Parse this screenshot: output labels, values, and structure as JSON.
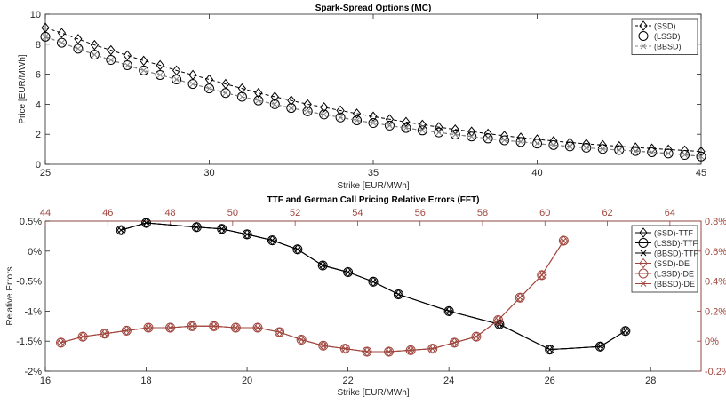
{
  "chart_data": [
    {
      "type": "line",
      "title": "Spark-Spread Options (MC)",
      "xlabel": "Strike [EUR/MWh]",
      "ylabel": "Price [EUR/MWh]",
      "xlim": [
        25,
        45
      ],
      "ylim": [
        0,
        10
      ],
      "xticks": [
        "25",
        "30",
        "35",
        "40",
        "45"
      ],
      "yticks": [
        "0",
        "2",
        "4",
        "6",
        "8",
        "10"
      ],
      "grid": false,
      "legend_position": "top-right",
      "x": [
        25,
        25.5,
        26,
        26.5,
        27,
        27.5,
        28,
        28.5,
        29,
        29.5,
        30,
        30.5,
        31,
        31.5,
        32,
        32.5,
        33,
        33.5,
        34,
        34.5,
        35,
        35.5,
        36,
        36.5,
        37,
        37.5,
        38,
        38.5,
        39,
        39.5,
        40,
        40.5,
        41,
        41.5,
        42,
        42.5,
        43,
        43.5,
        44,
        44.5,
        45
      ],
      "series": [
        {
          "name": "(SSD)",
          "marker": "diamond",
          "color": "#000000",
          "values": [
            9.1,
            8.75,
            8.35,
            7.95,
            7.6,
            7.25,
            6.9,
            6.6,
            6.25,
            5.95,
            5.65,
            5.35,
            5.05,
            4.75,
            4.5,
            4.25,
            4.0,
            3.8,
            3.58,
            3.38,
            3.18,
            3.0,
            2.82,
            2.64,
            2.48,
            2.32,
            2.18,
            2.04,
            1.9,
            1.78,
            1.66,
            1.55,
            1.45,
            1.36,
            1.28,
            1.2,
            1.12,
            1.05,
            0.98,
            0.92,
            0.85
          ]
        },
        {
          "name": "(LSSD)",
          "marker": "circle",
          "color": "#000000",
          "values": [
            8.5,
            8.1,
            7.7,
            7.3,
            6.95,
            6.6,
            6.25,
            5.95,
            5.65,
            5.35,
            5.05,
            4.75,
            4.5,
            4.25,
            4.0,
            3.75,
            3.53,
            3.32,
            3.12,
            2.93,
            2.75,
            2.58,
            2.42,
            2.26,
            2.12,
            1.98,
            1.85,
            1.72,
            1.6,
            1.49,
            1.38,
            1.28,
            1.19,
            1.1,
            1.02,
            0.95,
            0.88,
            0.8,
            0.72,
            0.62,
            0.52
          ]
        },
        {
          "name": "(BBSD)",
          "marker": "x",
          "color": "#888888",
          "values": [
            8.5,
            8.1,
            7.7,
            7.3,
            6.95,
            6.6,
            6.25,
            5.95,
            5.65,
            5.35,
            5.05,
            4.75,
            4.5,
            4.25,
            4.0,
            3.75,
            3.53,
            3.32,
            3.12,
            2.93,
            2.75,
            2.58,
            2.42,
            2.26,
            2.12,
            1.98,
            1.85,
            1.72,
            1.6,
            1.49,
            1.38,
            1.28,
            1.19,
            1.1,
            1.02,
            0.95,
            0.88,
            0.8,
            0.72,
            0.62,
            0.52
          ]
        }
      ]
    },
    {
      "type": "line",
      "title": "TTF and German Call Pricing Relative Errors (FFT)",
      "xlabel": "Strike [EUR/MWh]",
      "ylabel": "Relative Errors",
      "xlim": [
        16,
        29
      ],
      "ylim": [
        -2,
        0.5
      ],
      "xticks": [
        "16",
        "18",
        "20",
        "22",
        "24",
        "26",
        "28"
      ],
      "yticks": [
        "-2%",
        "-1.5%",
        "-1%",
        "-0.5%",
        "0%",
        "0.5%"
      ],
      "x2lim": [
        44,
        65
      ],
      "x2ticks": [
        "44",
        "46",
        "48",
        "50",
        "52",
        "54",
        "56",
        "58",
        "60",
        "62",
        "64"
      ],
      "y2lim": [
        -0.2,
        0.8
      ],
      "y2ticks": [
        "-0.2%",
        "0%",
        "0.2%",
        "0.4%",
        "0.6%",
        "0.8%"
      ],
      "secondary_color": "#a0453d",
      "grid": false,
      "legend_position": "top-right",
      "series": [
        {
          "name": "(SSD)-TTF",
          "axis": "primary",
          "marker": "diamond",
          "color": "#000000",
          "x": [
            17.5,
            18,
            19,
            19.5,
            20,
            20.5,
            21,
            21.5,
            22,
            22.5,
            23,
            24,
            25,
            26,
            27,
            27.5
          ],
          "values": [
            0.35,
            0.47,
            0.4,
            0.37,
            0.28,
            0.18,
            0.03,
            -0.24,
            -0.35,
            -0.51,
            -0.72,
            -1.0,
            -1.22,
            -1.64,
            -1.59,
            -1.33
          ]
        },
        {
          "name": "(LSSD)-TTF",
          "axis": "primary",
          "marker": "circle",
          "color": "#000000",
          "x": [
            17.5,
            18,
            19,
            19.5,
            20,
            20.5,
            21,
            21.5,
            22,
            22.5,
            23,
            24,
            25,
            26,
            27,
            27.5
          ],
          "values": [
            0.35,
            0.47,
            0.4,
            0.37,
            0.28,
            0.18,
            0.03,
            -0.24,
            -0.35,
            -0.51,
            -0.72,
            -1.0,
            -1.22,
            -1.64,
            -1.59,
            -1.33
          ]
        },
        {
          "name": "(BBSD)-TTF",
          "axis": "primary",
          "marker": "x",
          "color": "#000000",
          "x": [
            17.5,
            18,
            19,
            19.5,
            20,
            20.5,
            21,
            21.5,
            22,
            22.5,
            23,
            24,
            25,
            26,
            27,
            27.5
          ],
          "values": [
            0.35,
            0.47,
            0.4,
            0.37,
            0.28,
            0.18,
            0.03,
            -0.24,
            -0.35,
            -0.51,
            -0.72,
            -1.0,
            -1.22,
            -1.64,
            -1.59,
            -1.33
          ]
        },
        {
          "name": "(SSD)-DE",
          "axis": "secondary",
          "marker": "diamond",
          "color": "#a0453d",
          "x": [
            44.5,
            45.2,
            45.9,
            46.6,
            47.3,
            48.0,
            48.7,
            49.4,
            50.1,
            50.8,
            51.5,
            52.2,
            52.9,
            53.6,
            54.3,
            55.0,
            55.7,
            56.4,
            57.1,
            57.8,
            58.5,
            59.2,
            59.9,
            60.6
          ],
          "values": [
            -0.01,
            0.03,
            0.05,
            0.07,
            0.09,
            0.09,
            0.1,
            0.1,
            0.09,
            0.09,
            0.06,
            0.01,
            -0.03,
            -0.05,
            -0.07,
            -0.07,
            -0.06,
            -0.05,
            -0.01,
            0.03,
            0.14,
            0.29,
            0.44,
            0.67
          ]
        },
        {
          "name": "(LSSD)-DE",
          "axis": "secondary",
          "marker": "circle",
          "color": "#a0453d",
          "x": [
            44.5,
            45.2,
            45.9,
            46.6,
            47.3,
            48.0,
            48.7,
            49.4,
            50.1,
            50.8,
            51.5,
            52.2,
            52.9,
            53.6,
            54.3,
            55.0,
            55.7,
            56.4,
            57.1,
            57.8,
            58.5,
            59.2,
            59.9,
            60.6
          ],
          "values": [
            -0.01,
            0.03,
            0.05,
            0.07,
            0.09,
            0.09,
            0.1,
            0.1,
            0.09,
            0.09,
            0.06,
            0.01,
            -0.03,
            -0.05,
            -0.07,
            -0.07,
            -0.06,
            -0.05,
            -0.01,
            0.03,
            0.14,
            0.29,
            0.44,
            0.67
          ]
        },
        {
          "name": "(BBSD)-DE",
          "axis": "secondary",
          "marker": "x",
          "color": "#a0453d",
          "x": [
            44.5,
            45.2,
            45.9,
            46.6,
            47.3,
            48.0,
            48.7,
            49.4,
            50.1,
            50.8,
            51.5,
            52.2,
            52.9,
            53.6,
            54.3,
            55.0,
            55.7,
            56.4,
            57.1,
            57.8,
            58.5,
            59.2,
            59.9,
            60.6
          ],
          "values": [
            -0.01,
            0.03,
            0.05,
            0.07,
            0.09,
            0.09,
            0.1,
            0.1,
            0.09,
            0.09,
            0.06,
            0.01,
            -0.03,
            -0.05,
            -0.07,
            -0.07,
            -0.06,
            -0.05,
            -0.01,
            0.03,
            0.14,
            0.29,
            0.44,
            0.67
          ]
        }
      ]
    }
  ]
}
